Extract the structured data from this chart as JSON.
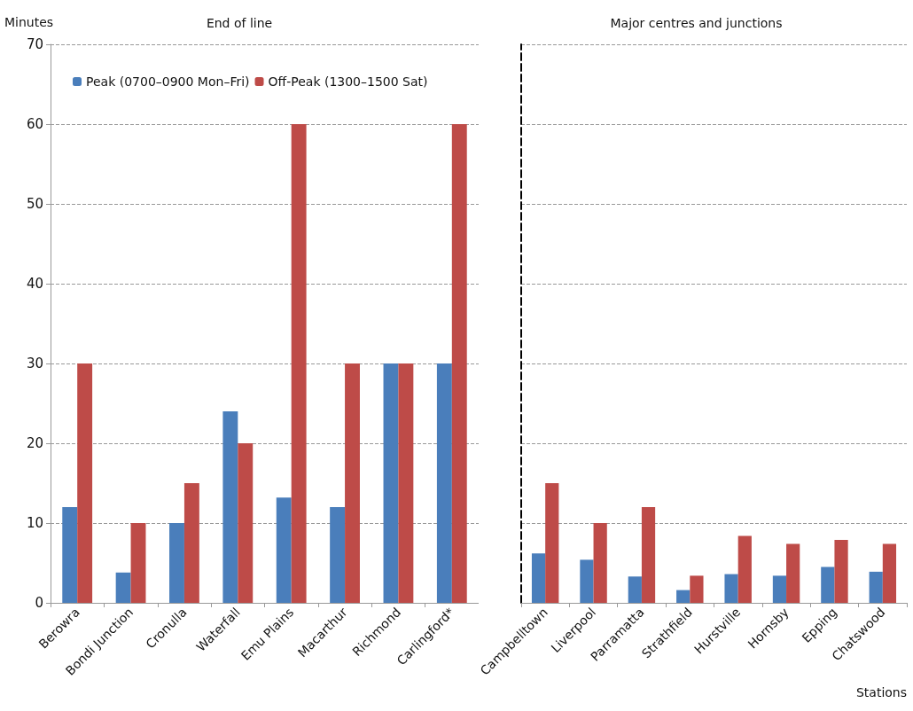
{
  "chart_data": [
    {
      "type": "bar",
      "title": "End of line",
      "ylabel": "Minutes",
      "categories": [
        "Berowra",
        "Bondi Junction",
        "Cronulla",
        "Waterfall",
        "Emu Plains",
        "Macarthur",
        "Richmond",
        "Carlingford*"
      ],
      "series": [
        {
          "name": "Peak (0700–0900 Mon–Fri)",
          "color": "#4a7ebb",
          "values": [
            12,
            3.8,
            10,
            24,
            13.2,
            12,
            30,
            30
          ]
        },
        {
          "name": "Off-Peak (1300–1500 Sat)",
          "color": "#be4b48",
          "values": [
            30,
            10,
            15,
            20,
            60,
            30,
            30,
            60
          ]
        }
      ],
      "ylim": [
        0,
        70
      ],
      "yticks": [
        0,
        10,
        20,
        30,
        40,
        50,
        60,
        70
      ],
      "grid": "y",
      "legend": "top left"
    },
    {
      "type": "bar",
      "title": "Major centres and junctions",
      "xlabel": "Stations",
      "categories": [
        "Campbelltown",
        "Liverpool",
        "Parramatta",
        "Strathfield",
        "Hurstville",
        "Hornsby",
        "Epping",
        "Chatswood"
      ],
      "series": [
        {
          "color": "#4a7ebb",
          "values": [
            6.2,
            5.4,
            3.3,
            1.6,
            3.6,
            3.4,
            4.5,
            3.9
          ]
        },
        {
          "color": "#be4b48",
          "values": [
            15,
            10,
            12,
            3.4,
            8.4,
            7.4,
            7.9,
            7.4
          ]
        }
      ],
      "ylim": [
        0,
        70
      ],
      "yticks": [
        0,
        10,
        20,
        30,
        40,
        50,
        60,
        70
      ],
      "grid": "y",
      "tick_labels": "x"
    }
  ]
}
